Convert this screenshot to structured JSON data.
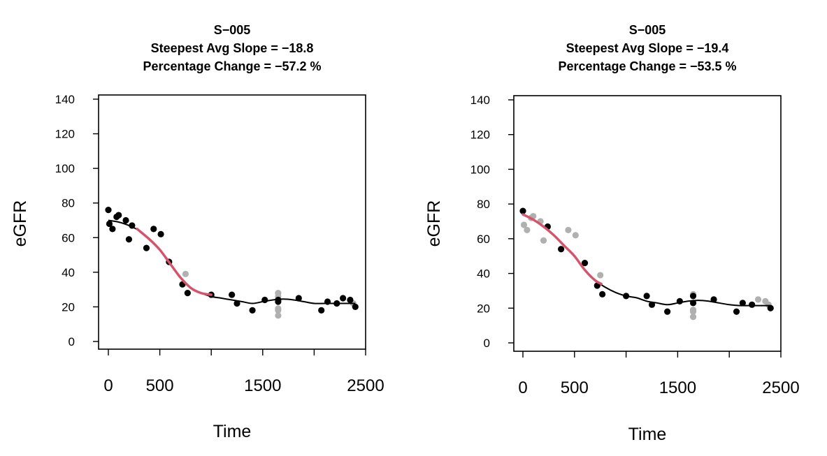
{
  "chart_data": [
    {
      "type": "scatter",
      "title_lines": [
        "S−005",
        "Steepest Avg Slope =  −18.8",
        "Percentage Change =  −57.2 %"
      ],
      "xlabel": "Time",
      "ylabel": "eGFR",
      "xlim": [
        -100,
        2500
      ],
      "ylim": [
        -5,
        145
      ],
      "xticks": [
        0,
        500,
        1000,
        1500,
        2000,
        2500
      ],
      "xtick_labels": [
        "0",
        "500",
        "",
        "1500",
        "",
        "2500"
      ],
      "yticks": [
        0,
        20,
        40,
        60,
        80,
        100,
        120,
        140
      ],
      "ytick_labels": [
        "0",
        "20",
        "40",
        "60",
        "80",
        "100",
        "120",
        "140"
      ],
      "colors": {
        "included": "#000000",
        "excluded": "#b0b0b0",
        "fit": "#000000",
        "steepest": "#d6546b"
      },
      "series": [
        {
          "role": "included",
          "points": [
            [
              0,
              76
            ],
            [
              10,
              68
            ],
            [
              40,
              65
            ],
            [
              80,
              72
            ],
            [
              100,
              73
            ],
            [
              170,
              70
            ],
            [
              200,
              59
            ],
            [
              230,
              67
            ],
            [
              370,
              54
            ],
            [
              440,
              65
            ],
            [
              510,
              62
            ],
            [
              590,
              46
            ],
            [
              720,
              33
            ],
            [
              770,
              28
            ],
            [
              1000,
              27
            ],
            [
              1200,
              27
            ],
            [
              1250,
              22
            ],
            [
              1400,
              18
            ],
            [
              1520,
              24
            ],
            [
              1650,
              23
            ],
            [
              1650,
              24
            ],
            [
              1850,
              25
            ],
            [
              2070,
              18
            ],
            [
              2130,
              23
            ],
            [
              2220,
              22
            ],
            [
              2280,
              25
            ],
            [
              2350,
              24
            ],
            [
              2400,
              20
            ]
          ]
        },
        {
          "role": "excluded",
          "points": [
            [
              750,
              39
            ],
            [
              1650,
              28
            ],
            [
              1650,
              26
            ],
            [
              1650,
              19
            ],
            [
              1650,
              18
            ],
            [
              1650,
              15
            ],
            [
              2380,
              22
            ]
          ]
        },
        {
          "role": "fit",
          "points": [
            [
              0,
              70
            ],
            [
              100,
              69
            ],
            [
              200,
              67
            ],
            [
              300,
              64
            ],
            [
              400,
              59
            ],
            [
              500,
              53
            ],
            [
              600,
              45
            ],
            [
              700,
              37
            ],
            [
              800,
              31
            ],
            [
              900,
              28
            ],
            [
              1000,
              26
            ],
            [
              1100,
              25
            ],
            [
              1200,
              24
            ],
            [
              1300,
              23
            ],
            [
              1400,
              22
            ],
            [
              1500,
              23
            ],
            [
              1600,
              24
            ],
            [
              1700,
              24.5
            ],
            [
              1800,
              24
            ],
            [
              1900,
              23
            ],
            [
              2000,
              22
            ],
            [
              2100,
              22
            ],
            [
              2200,
              22
            ],
            [
              2300,
              22
            ],
            [
              2400,
              22
            ]
          ]
        },
        {
          "role": "steepest",
          "points": [
            [
              280,
              65
            ],
            [
              400,
              59
            ],
            [
              500,
              53
            ],
            [
              600,
              45
            ],
            [
              700,
              37
            ],
            [
              800,
              31
            ],
            [
              900,
              28
            ],
            [
              1000,
              27
            ]
          ]
        }
      ]
    },
    {
      "type": "scatter",
      "title_lines": [
        "S−005",
        "Steepest Avg Slope =  −19.4",
        "Percentage Change =  −53.5 %"
      ],
      "xlabel": "Time",
      "ylabel": "eGFR",
      "xlim": [
        -100,
        2500
      ],
      "ylim": [
        -5,
        145
      ],
      "xticks": [
        0,
        500,
        1000,
        1500,
        2000,
        2500
      ],
      "xtick_labels": [
        "0",
        "500",
        "",
        "1500",
        "",
        "2500"
      ],
      "yticks": [
        0,
        20,
        40,
        60,
        80,
        100,
        120,
        140
      ],
      "ytick_labels": [
        "0",
        "20",
        "40",
        "60",
        "80",
        "100",
        "120",
        "140"
      ],
      "colors": {
        "included": "#000000",
        "excluded": "#b0b0b0",
        "fit": "#000000",
        "steepest": "#d6546b"
      },
      "series": [
        {
          "role": "included",
          "points": [
            [
              0,
              76
            ],
            [
              240,
              67
            ],
            [
              370,
              54
            ],
            [
              600,
              46
            ],
            [
              720,
              33
            ],
            [
              770,
              28
            ],
            [
              1000,
              27
            ],
            [
              1200,
              27
            ],
            [
              1250,
              22
            ],
            [
              1400,
              18
            ],
            [
              1520,
              24
            ],
            [
              1650,
              23
            ],
            [
              1650,
              27
            ],
            [
              1850,
              25
            ],
            [
              2070,
              18
            ],
            [
              2130,
              23
            ],
            [
              2220,
              22
            ],
            [
              2400,
              20
            ]
          ]
        },
        {
          "role": "excluded",
          "points": [
            [
              10,
              68
            ],
            [
              40,
              65
            ],
            [
              80,
              72
            ],
            [
              100,
              73
            ],
            [
              170,
              70
            ],
            [
              200,
              59
            ],
            [
              440,
              65
            ],
            [
              510,
              62
            ],
            [
              750,
              39
            ],
            [
              1650,
              28
            ],
            [
              1650,
              19
            ],
            [
              1650,
              18
            ],
            [
              1650,
              15
            ],
            [
              2280,
              25
            ],
            [
              2350,
              24
            ],
            [
              2380,
              22
            ]
          ]
        },
        {
          "role": "fit",
          "points": [
            [
              0,
              74
            ],
            [
              100,
              71
            ],
            [
              200,
              67
            ],
            [
              300,
              62
            ],
            [
              400,
              56
            ],
            [
              500,
              50
            ],
            [
              600,
              42
            ],
            [
              700,
              36
            ],
            [
              800,
              32
            ],
            [
              900,
              29
            ],
            [
              1000,
              27
            ],
            [
              1100,
              26
            ],
            [
              1200,
              24
            ],
            [
              1300,
              23
            ],
            [
              1400,
              22
            ],
            [
              1500,
              23
            ],
            [
              1600,
              24
            ],
            [
              1700,
              24.5
            ],
            [
              1800,
              24
            ],
            [
              1900,
              23
            ],
            [
              2000,
              22
            ],
            [
              2100,
              21.5
            ],
            [
              2200,
              21.5
            ],
            [
              2300,
              21.5
            ],
            [
              2400,
              21.5
            ]
          ]
        },
        {
          "role": "steepest",
          "points": [
            [
              0,
              74
            ],
            [
              100,
              71
            ],
            [
              200,
              67
            ],
            [
              300,
              62
            ],
            [
              400,
              56
            ],
            [
              500,
              50
            ],
            [
              600,
              42
            ],
            [
              700,
              36
            ],
            [
              760,
              34
            ]
          ]
        }
      ]
    }
  ]
}
